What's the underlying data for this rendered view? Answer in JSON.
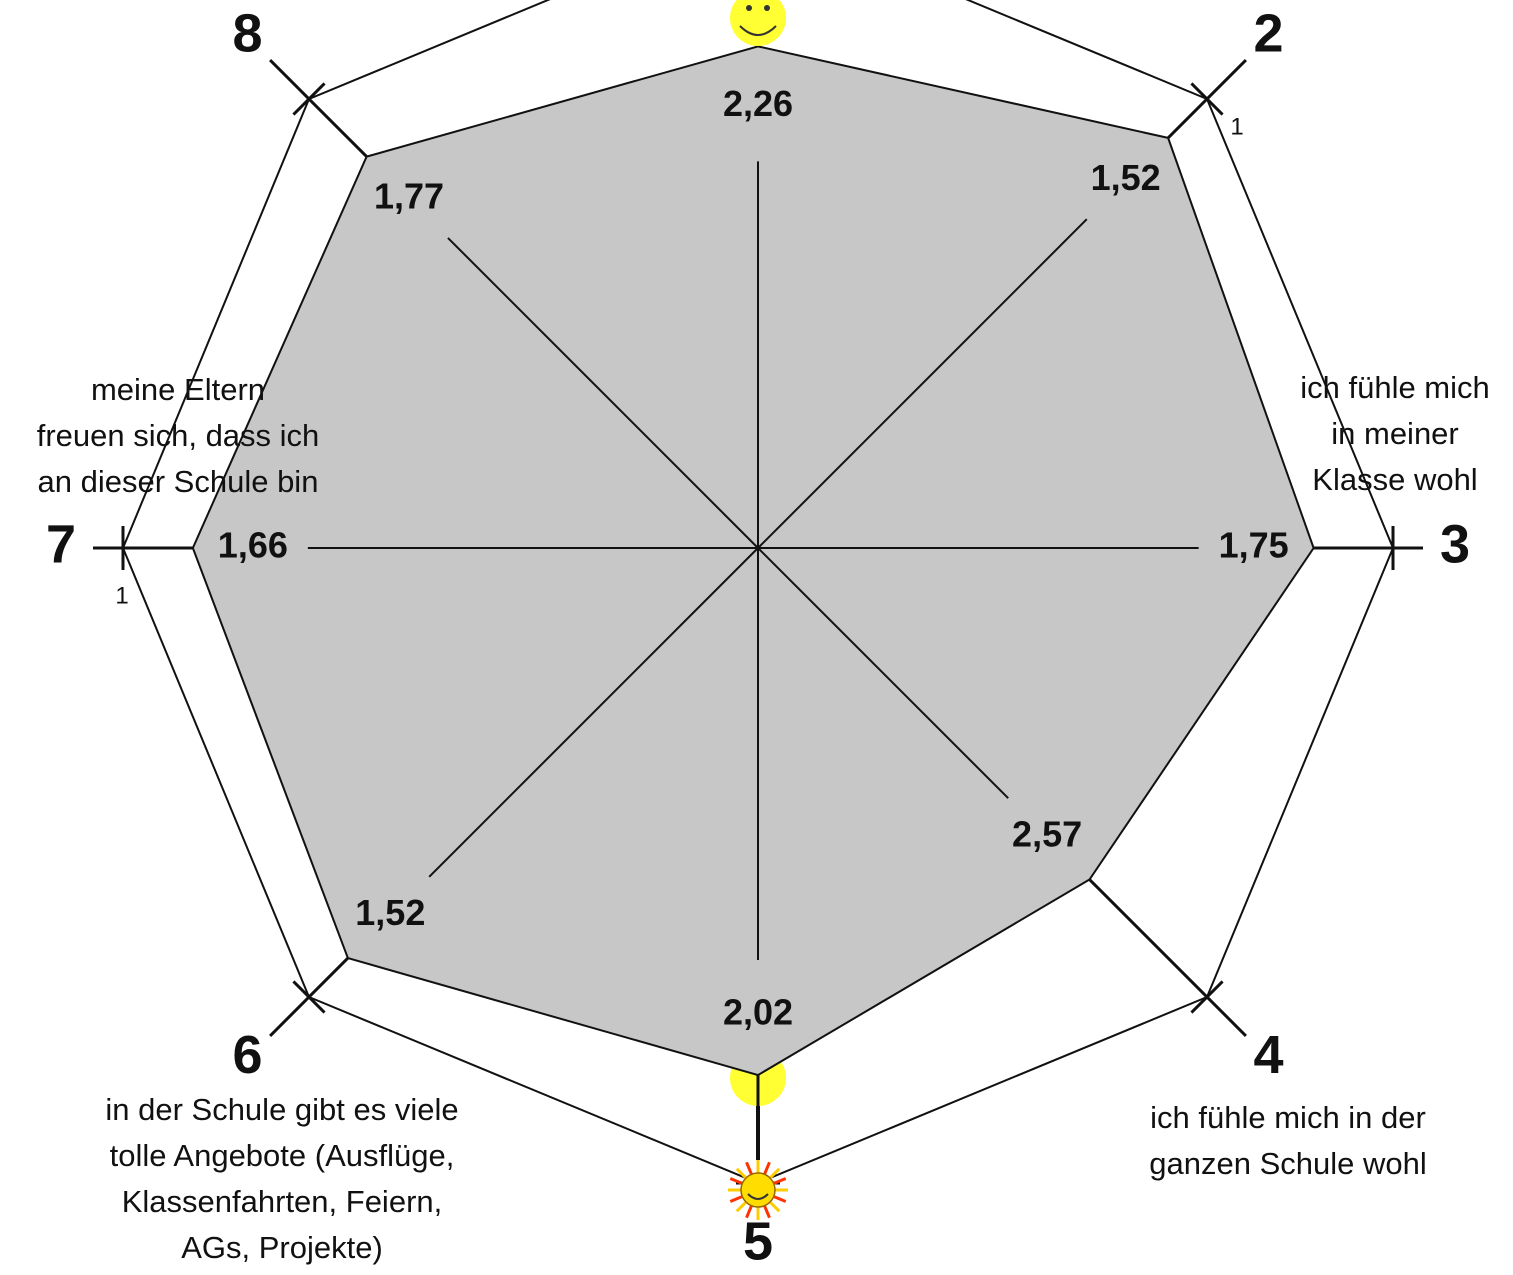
{
  "chart_data": {
    "type": "radar",
    "categories": [
      null,
      "2",
      "3",
      "4",
      "5",
      "6",
      "7",
      "8"
    ],
    "descriptions": [
      null,
      null,
      [
        "ich fühle mich",
        "in meiner",
        "Klasse wohl"
      ],
      [
        "ich fühle mich in der",
        "ganzen Schule wohl"
      ],
      null,
      [
        "in der Schule gibt es viele",
        "tolle Angebote (Ausflüge,",
        "Klassenfahrten, Feiern,",
        "AGs, Projekte)"
      ],
      [
        "meine Eltern",
        "freuen sich, dass ich",
        "an dieser Schule bin"
      ],
      null
    ],
    "values": [
      2.26,
      1.52,
      1.75,
      2.57,
      2.02,
      1.52,
      1.66,
      1.77
    ],
    "value_labels": [
      "2,26",
      "1,52",
      "1,75",
      "2,57",
      "2,02",
      "1,52",
      "1,66",
      "1,77"
    ],
    "color": "#c8c7c8",
    "rlim": [
      7,
      1
    ],
    "rticks": [
      1
    ]
  }
}
